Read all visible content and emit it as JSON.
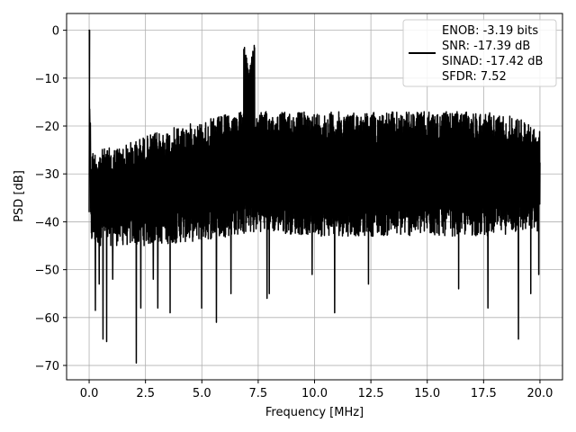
{
  "chart_data": {
    "type": "line",
    "xlabel": "Frequency [MHz]",
    "ylabel": "PSD [dB]",
    "xlim": [
      -1.0,
      21.0
    ],
    "ylim": [
      -73.0,
      3.5
    ],
    "xticks": [
      0.0,
      2.5,
      5.0,
      7.5,
      10.0,
      12.5,
      15.0,
      17.5,
      20.0
    ],
    "xtick_labels": [
      "0.0",
      "2.5",
      "5.0",
      "7.5",
      "10.0",
      "12.5",
      "15.0",
      "17.5",
      "20.0"
    ],
    "yticks": [
      0,
      -10,
      -20,
      -30,
      -40,
      -50,
      -60,
      -70
    ],
    "ytick_labels": [
      "0",
      "−10",
      "−20",
      "−30",
      "−40",
      "−50",
      "−60",
      "−70"
    ],
    "grid": true,
    "legend_position": "top-right",
    "line_color": "#000000",
    "series": [
      {
        "legend_lines": [
          "ENOB: -3.19 bits",
          "SNR: -17.39 dB",
          "SINAD: -17.42 dB",
          "SFDR: 7.52"
        ],
        "x_range": [
          0.0,
          20.0
        ],
        "dc_peak": {
          "x": 0.02,
          "y": 0
        },
        "tone_peak": {
          "x": 7.1,
          "y": -8.5
        },
        "noise_floor_upper": [
          [
            0.3,
            -25
          ],
          [
            1.5,
            -24
          ],
          [
            2.5,
            -22
          ],
          [
            4.0,
            -20
          ],
          [
            5.0,
            -19
          ],
          [
            6.5,
            -17
          ],
          [
            8.0,
            -17
          ],
          [
            10.0,
            -17
          ],
          [
            12.5,
            -17
          ],
          [
            15.0,
            -17
          ],
          [
            17.5,
            -17
          ],
          [
            19.0,
            -18
          ],
          [
            20.0,
            -21
          ]
        ],
        "noise_floor_lower": [
          [
            0.3,
            -45
          ],
          [
            2.5,
            -45
          ],
          [
            5.0,
            -44
          ],
          [
            7.5,
            -42
          ],
          [
            10.0,
            -43
          ],
          [
            12.5,
            -43
          ],
          [
            15.0,
            -43
          ],
          [
            17.5,
            -43
          ],
          [
            20.0,
            -42
          ]
        ],
        "deep_dips": [
          [
            0.28,
            -58.5
          ],
          [
            0.45,
            -53
          ],
          [
            0.62,
            -64.5
          ],
          [
            0.78,
            -65
          ],
          [
            1.05,
            -52
          ],
          [
            2.1,
            -69.5
          ],
          [
            2.3,
            -58
          ],
          [
            2.85,
            -52
          ],
          [
            3.05,
            -58
          ],
          [
            3.6,
            -59
          ],
          [
            5.0,
            -58
          ],
          [
            5.65,
            -61
          ],
          [
            6.3,
            -55
          ],
          [
            7.9,
            -56
          ],
          [
            8.0,
            -55
          ],
          [
            9.9,
            -51
          ],
          [
            10.9,
            -59
          ],
          [
            12.4,
            -53
          ],
          [
            16.4,
            -54
          ],
          [
            17.7,
            -58
          ],
          [
            19.05,
            -64.5
          ],
          [
            19.6,
            -55
          ],
          [
            19.95,
            -51
          ]
        ]
      }
    ]
  }
}
